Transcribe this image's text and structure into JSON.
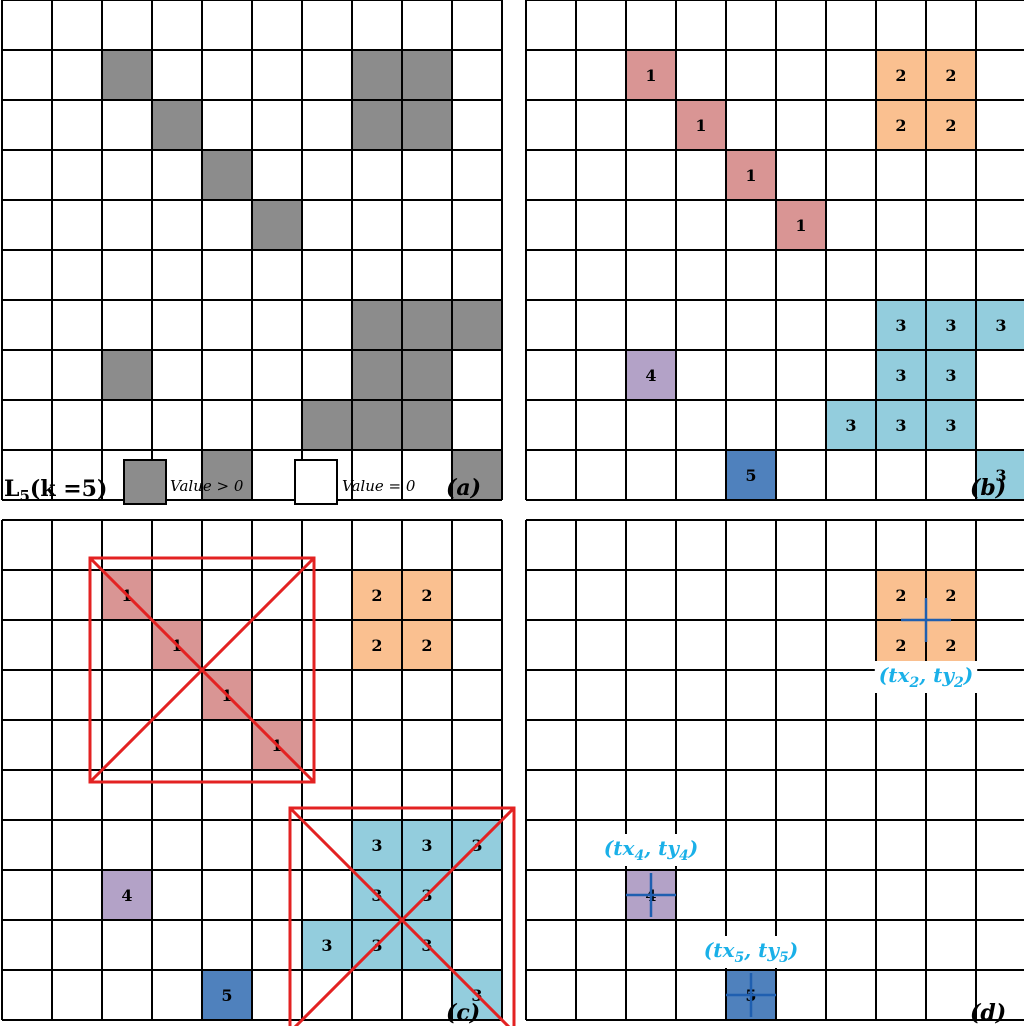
{
  "colors": {
    "gray": "#8c8c8c",
    "c1": "#d99594",
    "c2": "#fac090",
    "c3": "#93cddd",
    "c4": "#b3a2c7",
    "c5": "#4f81bd",
    "red": "#e32222",
    "cross": "#1f5fb0",
    "coord": "#1ab0e8"
  },
  "panel_a": {
    "label": "(a)",
    "filled": [
      [
        1,
        2
      ],
      [
        1,
        7
      ],
      [
        1,
        8
      ],
      [
        2,
        3
      ],
      [
        2,
        7
      ],
      [
        2,
        8
      ],
      [
        3,
        4
      ],
      [
        4,
        5
      ],
      [
        6,
        7
      ],
      [
        6,
        8
      ],
      [
        6,
        9
      ],
      [
        7,
        2
      ],
      [
        7,
        7
      ],
      [
        7,
        8
      ],
      [
        8,
        6
      ],
      [
        8,
        7
      ],
      [
        8,
        8
      ],
      [
        9,
        4
      ],
      [
        9,
        9
      ]
    ]
  },
  "legend": {
    "lk_label": "L5(k =5)",
    "lk_main": "L",
    "lk_sub": "5",
    "lk_rest": "(k =5)",
    "pos_label": "Value > 0",
    "zero_label": "Value = 0"
  },
  "panel_b": {
    "label": "(b)",
    "cells": [
      [
        1,
        2,
        1
      ],
      [
        2,
        3,
        1
      ],
      [
        3,
        4,
        1
      ],
      [
        4,
        5,
        1
      ],
      [
        1,
        7,
        2
      ],
      [
        1,
        8,
        2
      ],
      [
        2,
        7,
        2
      ],
      [
        2,
        8,
        2
      ],
      [
        6,
        7,
        3
      ],
      [
        6,
        8,
        3
      ],
      [
        6,
        9,
        3
      ],
      [
        7,
        7,
        3
      ],
      [
        7,
        8,
        3
      ],
      [
        8,
        6,
        3
      ],
      [
        8,
        7,
        3
      ],
      [
        8,
        8,
        3
      ],
      [
        9,
        9,
        3
      ],
      [
        7,
        2,
        4
      ],
      [
        9,
        4,
        5
      ]
    ]
  },
  "panel_c": {
    "label": "(c)",
    "cells": [
      [
        1,
        2,
        1
      ],
      [
        2,
        3,
        1
      ],
      [
        3,
        4,
        1
      ],
      [
        4,
        5,
        1
      ],
      [
        1,
        7,
        2
      ],
      [
        1,
        8,
        2
      ],
      [
        2,
        7,
        2
      ],
      [
        2,
        8,
        2
      ],
      [
        6,
        7,
        3
      ],
      [
        6,
        8,
        3
      ],
      [
        6,
        9,
        3
      ],
      [
        7,
        7,
        3
      ],
      [
        7,
        8,
        3
      ],
      [
        8,
        6,
        3
      ],
      [
        8,
        7,
        3
      ],
      [
        8,
        8,
        3
      ],
      [
        9,
        9,
        3
      ],
      [
        7,
        2,
        4
      ],
      [
        9,
        4,
        5
      ]
    ],
    "discarded": [
      1,
      3
    ]
  },
  "panel_d": {
    "label": "(d)",
    "cells": [
      [
        1,
        7,
        2
      ],
      [
        1,
        8,
        2
      ],
      [
        2,
        7,
        2
      ],
      [
        2,
        8,
        2
      ],
      [
        7,
        2,
        4
      ],
      [
        9,
        4,
        5
      ]
    ],
    "centers": [
      {
        "id": 2,
        "label": "(tx2, ty2)",
        "tx": "tx",
        "ty": "ty",
        "sub": "2"
      },
      {
        "id": 4,
        "label": "(tx4, ty4)",
        "tx": "tx",
        "ty": "ty",
        "sub": "4"
      },
      {
        "id": 5,
        "label": "(tx5, ty5)",
        "tx": "tx",
        "ty": "ty",
        "sub": "5"
      }
    ]
  }
}
